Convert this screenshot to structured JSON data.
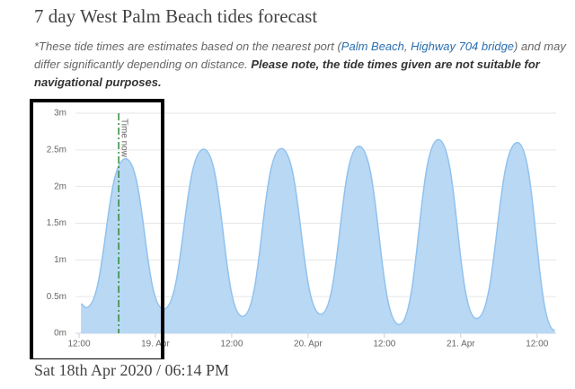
{
  "header": {
    "title": "7 day West Palm Beach tides forecast"
  },
  "note": {
    "text1": "*These tide times are estimates based on the nearest port (",
    "link1": "Palm Beach",
    "sep": ", ",
    "link2": "Highway 704 bridge",
    "text2": ") and may differ significantly depending on distance. ",
    "warning": "Please note, the tide times given are not suitable for navigational purposes."
  },
  "chart_data": {
    "type": "area",
    "color": "#b9d8f4",
    "line_color": "#90c2ee",
    "x": [
      12.3,
      13.1,
      19.3,
      25.3,
      31.6,
      37.7,
      43.8,
      50.0,
      56.0,
      62.3,
      68.5,
      74.5,
      80.9,
      86.8
    ],
    "values": [
      0.4,
      0.35,
      2.38,
      0.33,
      2.51,
      0.23,
      2.52,
      0.26,
      2.55,
      0.12,
      2.64,
      0.2,
      2.6,
      0.04
    ],
    "xlim": [
      12,
      87
    ],
    "ylim": [
      0,
      3
    ],
    "xticks": [
      {
        "value": 12,
        "label": "12:00"
      },
      {
        "value": 24,
        "label": "19. Apr"
      },
      {
        "value": 36,
        "label": "12:00"
      },
      {
        "value": 48,
        "label": "20. Apr"
      },
      {
        "value": 60,
        "label": "12:00"
      },
      {
        "value": 72,
        "label": "21. Apr"
      },
      {
        "value": 84,
        "label": "12:00"
      }
    ],
    "yticks": [
      {
        "value": 0,
        "label": "0m"
      },
      {
        "value": 0.5,
        "label": "0.5m"
      },
      {
        "value": 1,
        "label": "1m"
      },
      {
        "value": 1.5,
        "label": "1.5m"
      },
      {
        "value": 2,
        "label": "2m"
      },
      {
        "value": 2.5,
        "label": "2.5m"
      },
      {
        "value": 3,
        "label": "3m"
      }
    ],
    "grid": true,
    "now_line": {
      "x": 18.23,
      "label": "Time now",
      "color": "#2e8b3a"
    }
  },
  "footer": {
    "date": "Sat 18th Apr 2020 / 06:14 PM"
  }
}
